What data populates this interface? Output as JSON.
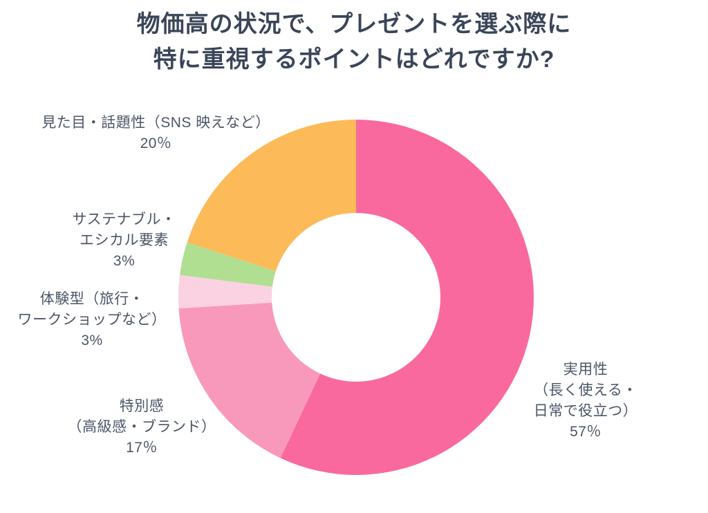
{
  "title": {
    "lines": [
      "物価高の状況で、プレゼントを選ぶ際に",
      "特に重視するポイントはどれですか?"
    ]
  },
  "chart_data": {
    "type": "pie",
    "subtype": "donut",
    "title": "物価高の状況で、プレゼントを選ぶ際に特に重視するポイントはどれですか?",
    "categories": [
      "実用性（長く使える・日常で役立つ）",
      "特別感（高級感・ブランド）",
      "体験型（旅行・ワークショップなど）",
      "サステナブル・エシカル要素",
      "見た目・話題性（SNS 映えなど）"
    ],
    "values": [
      57,
      17,
      3,
      3,
      20
    ],
    "unit": "%",
    "colors": [
      "#F9699E",
      "#F899BB",
      "#FAD2E2",
      "#B1DF91",
      "#FCBA58"
    ],
    "start_angle_deg": 0,
    "direction": "clockwise",
    "hole_ratio": 0.475,
    "legend_position": "labels-around-chart",
    "slice_labels": [
      {
        "lines": [
          "実用性",
          "（長く使える・",
          "日常で役立つ）",
          "57％"
        ]
      },
      {
        "lines": [
          "特別感",
          "（高級感・ブランド）",
          "17％"
        ]
      },
      {
        "lines": [
          "体験型（旅行・",
          "ワークショップなど）",
          "3%"
        ]
      },
      {
        "lines": [
          "サステナブル・",
          "エシカル要素",
          "3%"
        ]
      },
      {
        "lines": [
          "見た目・話題性（SNS 映えなど）",
          "20％"
        ]
      }
    ]
  },
  "colors": {
    "background": "#FFFFFF",
    "title_text": "#3B4559",
    "label_text": "#4B5565"
  }
}
